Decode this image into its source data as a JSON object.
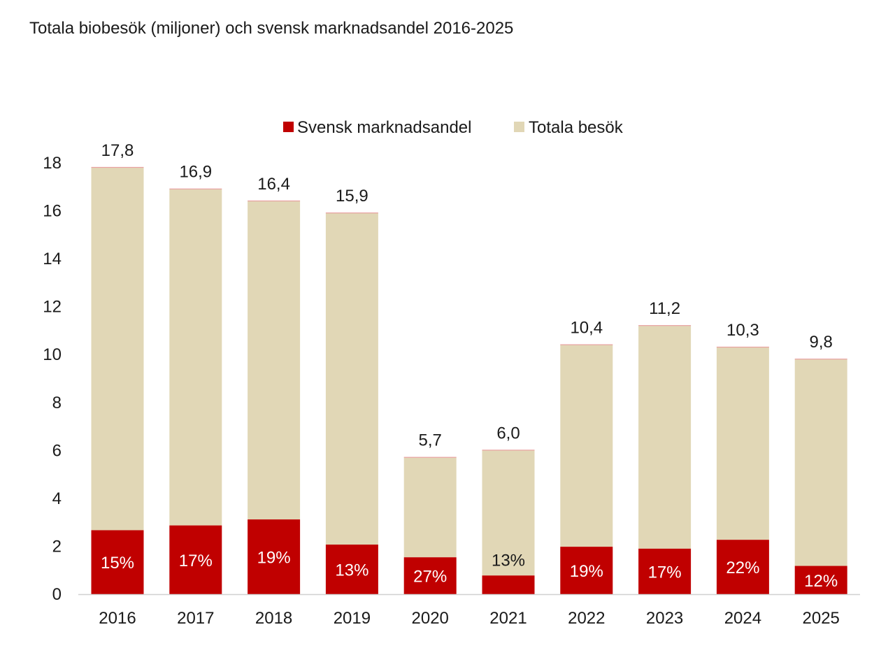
{
  "chart_data": {
    "type": "bar",
    "stacked": true,
    "title": "Totala biobesök (miljoner) och svensk marknadsandel 2016-2025",
    "xlabel": "",
    "ylabel": "",
    "ylim": [
      0,
      18
    ],
    "yticks": [
      0,
      2,
      4,
      6,
      8,
      10,
      12,
      14,
      16,
      18
    ],
    "grid": false,
    "legend_position": "top-center",
    "categories": [
      "2016",
      "2017",
      "2018",
      "2019",
      "2020",
      "2021",
      "2022",
      "2023",
      "2024",
      "2025"
    ],
    "totals": [
      17.8,
      16.9,
      16.4,
      15.9,
      5.7,
      6.0,
      10.4,
      11.2,
      10.3,
      9.8
    ],
    "total_labels": [
      "17,8",
      "16,9",
      "16,4",
      "15,9",
      "5,7",
      "6,0",
      "10,4",
      "11,2",
      "10,3",
      "9,8"
    ],
    "series": [
      {
        "name": "Svensk marknadsandel",
        "color": "#C00000",
        "values": [
          2.67,
          2.87,
          3.12,
          2.07,
          1.54,
          0.78,
          1.98,
          1.9,
          2.27,
          1.18
        ],
        "labels": [
          "15%",
          "17%",
          "19%",
          "13%",
          "27%",
          "13%",
          "19%",
          "17%",
          "22%",
          "12%"
        ]
      },
      {
        "name": "Totala besök",
        "color": "#E1D7B6",
        "values": [
          15.13,
          14.03,
          13.28,
          13.83,
          4.16,
          5.22,
          8.42,
          9.3,
          8.03,
          8.62
        ]
      }
    ]
  }
}
